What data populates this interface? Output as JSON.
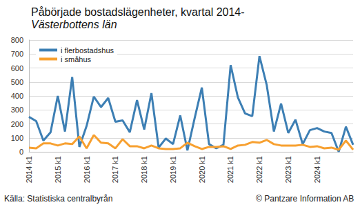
{
  "chart_data": {
    "type": "line",
    "title": "Påbörjade bostadslägenheter, kvartal 2014-",
    "subtitle": "Västerbottens län",
    "annotations": [
      "Källa: Statistiska centralbyrån",
      "© Pantzare Information AB"
    ],
    "categories": [
      "2014 k1",
      null,
      null,
      null,
      "2015 k1",
      null,
      null,
      null,
      "2016 k1",
      null,
      null,
      null,
      "2017 k1",
      null,
      null,
      null,
      "2018 k1",
      null,
      null,
      null,
      "2019 k1",
      null,
      null,
      null,
      "2020 k1",
      null,
      null,
      null,
      "2021 k1",
      null,
      null,
      null,
      "2022 k1",
      null,
      null,
      null,
      "2023 k1",
      null,
      null,
      null,
      "2024 k1",
      null,
      null,
      null,
      null,
      null
    ],
    "series": [
      {
        "name": "i flerbostadshus",
        "color": "#3d7fb4",
        "values": [
          250,
          220,
          80,
          140,
          400,
          145,
          535,
          35,
          185,
          395,
          320,
          385,
          215,
          225,
          140,
          370,
          160,
          420,
          30,
          95,
          55,
          260,
          10,
          240,
          460,
          55,
          25,
          50,
          620,
          390,
          275,
          255,
          685,
          480,
          145,
          345,
          135,
          230,
          55,
          155,
          170,
          145,
          135,
          0,
          180,
          50
        ]
      },
      {
        "name": "i småhus",
        "color": "#f7a030",
        "values": [
          30,
          25,
          60,
          60,
          45,
          60,
          55,
          110,
          25,
          120,
          65,
          60,
          25,
          90,
          40,
          40,
          25,
          45,
          25,
          20,
          20,
          25,
          65,
          40,
          20,
          35,
          35,
          40,
          20,
          45,
          50,
          70,
          65,
          85,
          55,
          45,
          45,
          45,
          50,
          35,
          40,
          25,
          30,
          15,
          80,
          15
        ]
      }
    ],
    "ylim": [
      0,
      800
    ],
    "yticks": [
      0,
      100,
      200,
      300,
      400,
      500,
      600,
      700,
      800
    ],
    "grid": true,
    "legend": "upper left"
  }
}
